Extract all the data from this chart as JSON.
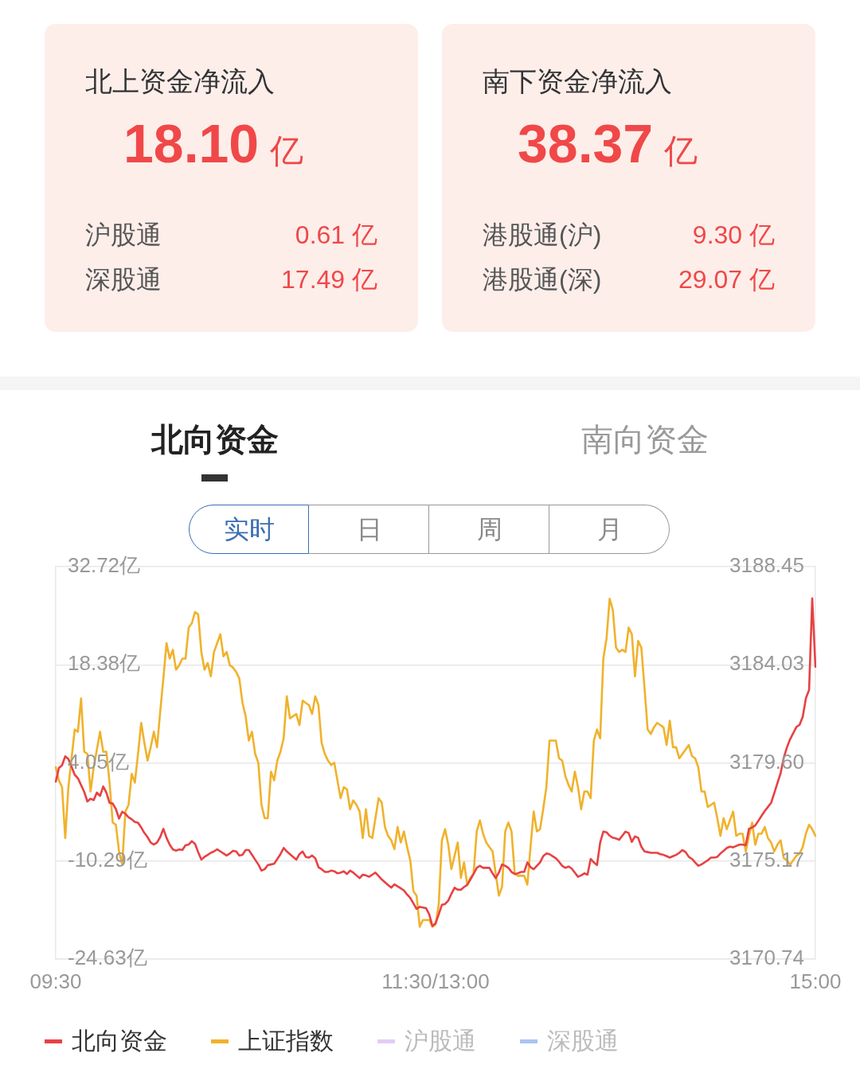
{
  "chart_data": [
    {
      "type": "other",
      "title": "北上资金净流入",
      "subtitle": "18.10 亿",
      "categories": [
        "沪股通",
        "深股通"
      ],
      "value_labels": [
        "0.61 亿",
        "17.49 亿"
      ]
    },
    {
      "type": "other",
      "title": "南下资金净流入",
      "subtitle": "38.37 亿",
      "categories": [
        "港股通(沪)",
        "港股通(深)"
      ],
      "value_labels": [
        "9.30 亿",
        "29.07 亿"
      ]
    },
    {
      "type": "other",
      "categories": [
        "北向资金",
        "南向资金"
      ]
    },
    {
      "type": "other",
      "categories": [
        "实时",
        "日",
        "周",
        "月"
      ]
    },
    {
      "type": "line",
      "categories": [
        "09:30",
        null,
        null,
        null,
        null,
        null,
        null,
        null,
        null,
        null,
        null,
        null,
        null,
        null,
        null,
        null,
        null,
        null,
        null,
        null,
        null,
        null,
        null,
        null,
        null,
        null,
        null,
        null,
        null,
        null,
        null,
        null,
        null,
        null,
        null,
        null,
        null,
        null,
        null,
        null,
        null,
        null,
        null,
        null,
        null,
        null,
        null,
        null,
        null,
        null,
        null,
        null,
        null,
        null,
        null,
        null,
        null,
        null,
        null,
        null,
        null,
        null,
        null,
        null,
        null,
        null,
        null,
        null,
        null,
        null,
        null,
        null,
        null,
        null,
        null,
        null,
        null,
        null,
        null,
        null,
        null,
        null,
        null,
        null,
        null,
        null,
        null,
        null,
        null,
        null,
        null,
        null,
        null,
        null,
        null,
        null,
        null,
        null,
        null,
        null,
        null,
        null,
        null,
        null,
        null,
        null,
        null,
        null,
        null,
        null,
        null,
        null,
        null,
        null,
        null,
        null,
        null,
        null,
        null,
        null,
        "11:30/13:00",
        null,
        null,
        null,
        null,
        null,
        null,
        null,
        null,
        null,
        null,
        null,
        null,
        null,
        null,
        null,
        null,
        null,
        null,
        null,
        null,
        null,
        null,
        null,
        null,
        null,
        null,
        null,
        null,
        null,
        null,
        null,
        null,
        null,
        null,
        null,
        null,
        null,
        null,
        null,
        null,
        null,
        null,
        null,
        null,
        null,
        null,
        null,
        null,
        null,
        null,
        null,
        null,
        null,
        null,
        null,
        null,
        null,
        null,
        null,
        null,
        null,
        null,
        null,
        null,
        null,
        null,
        null,
        null,
        null,
        null,
        null,
        null,
        null,
        null,
        null,
        null,
        null,
        null,
        null,
        null,
        null,
        null,
        null,
        null,
        null,
        null,
        null,
        null,
        null,
        null,
        null,
        null,
        null,
        null,
        null,
        null,
        null,
        null,
        null,
        null,
        null,
        null,
        null,
        null,
        null,
        null,
        null,
        null,
        null,
        null,
        null,
        null,
        null,
        null,
        null,
        null,
        null,
        null,
        null,
        "15:00"
      ],
      "series": [
        {
          "name": "北向资金",
          "color": "#e84142",
          "values": [
            1.3,
            3.3,
            3.7,
            5.0,
            4.6,
            3.5,
            2.3,
            1.8,
            0.8,
            -0.2,
            -1.6,
            -1.2,
            -1.4,
            -0.3,
            -0.8,
            0.6,
            -0.3,
            -1.8,
            -1.9,
            -2.7,
            -4.1,
            -3.1,
            -3.4,
            -3.9,
            -4.2,
            -4.6,
            -4.7,
            -5.4,
            -6.2,
            -6.8,
            -7.6,
            -7.9,
            -7.6,
            -6.8,
            -5.6,
            -6.9,
            -7.9,
            -8.6,
            -8.8,
            -8.6,
            -8.7,
            -8.0,
            -7.9,
            -7.4,
            -7.8,
            -9.0,
            -10.1,
            -9.7,
            -9.4,
            -9.1,
            -8.9,
            -8.6,
            -8.9,
            -9.2,
            -9.5,
            -9.2,
            -8.8,
            -8.9,
            -9.5,
            -9.4,
            -8.7,
            -8.7,
            -9.4,
            -10.1,
            -10.8,
            -11.7,
            -11.5,
            -10.9,
            -10.8,
            -10.7,
            -10.0,
            -9.3,
            -8.4,
            -8.9,
            -9.3,
            -9.7,
            -10.1,
            -9.3,
            -8.9,
            -9.7,
            -9.8,
            -9.5,
            -9.9,
            -11.2,
            -11.5,
            -11.9,
            -11.9,
            -11.7,
            -11.8,
            -12.1,
            -12.0,
            -11.8,
            -12.2,
            -11.7,
            -12.0,
            -12.4,
            -12.8,
            -12.3,
            -12.4,
            -12.6,
            -12.3,
            -12.0,
            -12.5,
            -13.0,
            -13.4,
            -13.8,
            -14.2,
            -13.7,
            -14.0,
            -14.3,
            -14.6,
            -15.2,
            -15.7,
            -16.5,
            -17.3,
            -17.0,
            -17.1,
            -17.2,
            -18.1,
            -19.8,
            -19.4,
            -18.1,
            -16.7,
            -16.6,
            -16.1,
            -15.1,
            -14.2,
            -14.5,
            -14.5,
            -14.1,
            -13.8,
            -13.0,
            -12.2,
            -11.3,
            -11.0,
            -11.3,
            -11.3,
            -11.3,
            -12.1,
            -12.8,
            -12.0,
            -10.8,
            -11.0,
            -11.3,
            -11.9,
            -12.2,
            -12.1,
            -11.9,
            -11.9,
            -10.5,
            -11.2,
            -11.5,
            -11.0,
            -10.5,
            -9.6,
            -9.2,
            -9.3,
            -9.6,
            -9.9,
            -10.4,
            -11.0,
            -11.3,
            -11.1,
            -11.4,
            -12.0,
            -12.6,
            -12.4,
            -12.1,
            -12.3,
            -10.0,
            -10.5,
            -10.9,
            -7.6,
            -6.0,
            -6.1,
            -6.6,
            -6.9,
            -7.0,
            -7.2,
            -6.6,
            -6.0,
            -6.2,
            -7.5,
            -6.7,
            -6.9,
            -8.2,
            -8.9,
            -9.0,
            -9.1,
            -9.1,
            -9.1,
            -9.3,
            -9.4,
            -9.6,
            -9.8,
            -9.6,
            -9.4,
            -9.1,
            -8.7,
            -9.0,
            -9.7,
            -10.0,
            -10.5,
            -11.0,
            -10.8,
            -10.5,
            -10.2,
            -9.8,
            -9.8,
            -9.7,
            -9.2,
            -8.8,
            -8.4,
            -8.2,
            -8.3,
            -8.1,
            -7.9,
            -7.9,
            -8.0,
            -5.6,
            -5.4,
            -5.1,
            -4.4,
            -3.7,
            -3.0,
            -2.4,
            -1.8,
            -0.4,
            1.1,
            2.5,
            4.8,
            6.3,
            7.5,
            8.4,
            9.3,
            9.6,
            10.8,
            13.5,
            14.7,
            28.1,
            18.1
          ]
        },
        {
          "name": "上证指数",
          "color": "#f0b22c",
          "axis": "y2",
          "values": [
            3179.4,
            3178.8,
            3178.5,
            3176.2,
            3178.5,
            3179.8,
            3181.1,
            3181.0,
            3182.5,
            3180.1,
            3180.0,
            3178.3,
            3179.4,
            3180.2,
            3181.0,
            3180.1,
            3180.1,
            3178.7,
            3176.9,
            3176.8,
            3175.6,
            3175.0,
            3177.4,
            3177.7,
            3179.1,
            3178.7,
            3180.0,
            3181.4,
            3180.5,
            3179.7,
            3180.3,
            3181.0,
            3180.3,
            3181.9,
            3183.4,
            3185.0,
            3184.3,
            3184.7,
            3183.8,
            3184.0,
            3184.3,
            3184.3,
            3185.7,
            3185.9,
            3186.4,
            3186.3,
            3184.6,
            3183.8,
            3184.1,
            3183.5,
            3184.6,
            3185.0,
            3185.4,
            3184.4,
            3184.6,
            3184.0,
            3183.9,
            3183.7,
            3183.4,
            3182.3,
            3181.7,
            3180.6,
            3181.0,
            3180.0,
            3179.6,
            3177.7,
            3177.1,
            3177.1,
            3179.2,
            3178.8,
            3179.7,
            3180.1,
            3180.7,
            3182.6,
            3181.6,
            3181.7,
            3181.8,
            3181.3,
            3182.4,
            3182.3,
            3182.2,
            3181.8,
            3182.6,
            3182.2,
            3180.5,
            3180.0,
            3179.7,
            3179.5,
            3179.6,
            3178.8,
            3178.0,
            3178.5,
            3178.4,
            3177.5,
            3177.9,
            3177.7,
            3177.4,
            3176.2,
            3177.5,
            3176.3,
            3176.2,
            3177.1,
            3178.0,
            3177.8,
            3176.7,
            3176.3,
            3176.1,
            3175.7,
            3176.7,
            3176.0,
            3176.5,
            3175.8,
            3175.2,
            3173.8,
            3173.6,
            3172.2,
            3172.5,
            3172.5,
            3172.5,
            3172.2,
            3172.3,
            3173.2,
            3176.1,
            3176.6,
            3175.9,
            3174.8,
            3175.4,
            3176.0,
            3174.4,
            3175.1,
            3174.1,
            3174.4,
            3174.6,
            3176.5,
            3177.0,
            3176.4,
            3176.0,
            3175.8,
            3175.6,
            3174.6,
            3173.6,
            3174.0,
            3176.5,
            3176.9,
            3176.5,
            3174.6,
            3174.5,
            3174.5,
            3174.5,
            3174.1,
            3175.8,
            3177.4,
            3176.5,
            3176.6,
            3177.5,
            3178.5,
            3180.6,
            3180.6,
            3180.6,
            3179.8,
            3179.7,
            3179.0,
            3178.6,
            3178.3,
            3179.2,
            3178.5,
            3177.5,
            3178.3,
            3178.3,
            3178.0,
            3180.6,
            3181.1,
            3180.7,
            3184.3,
            3185.2,
            3187.0,
            3186.5,
            3184.8,
            3184.6,
            3184.7,
            3184.6,
            3185.7,
            3185.4,
            3183.5,
            3185.1,
            3184.8,
            3183.0,
            3181.1,
            3180.9,
            3181.2,
            3181.4,
            3181.3,
            3181.2,
            3180.4,
            3181.5,
            3180.3,
            3180.3,
            3179.8,
            3180.0,
            3180.2,
            3180.4,
            3179.9,
            3179.8,
            3179.4,
            3178.3,
            3178.3,
            3177.6,
            3177.7,
            3177.8,
            3177.1,
            3176.3,
            3177.1,
            3176.6,
            3177.0,
            3177.4,
            3176.3,
            3176.4,
            3176.4,
            3175.6,
            3176.3,
            3176.9,
            3175.9,
            3176.4,
            3176.4,
            3176.7,
            3176.2,
            3176.0,
            3175.6,
            3175.9,
            3176.1,
            3175.3,
            3175.2,
            3175.0,
            3175.2,
            3175.4,
            3175.5,
            3175.8,
            3176.4,
            3176.8,
            3176.6,
            3176.3
          ]
        },
        {
          "name": "沪股通",
          "color": "#e2cdf5",
          "values": [
            null,
            null,
            null,
            null,
            null,
            null,
            null,
            null,
            null,
            null,
            null,
            null,
            null,
            null,
            null,
            null,
            null,
            null,
            null,
            null,
            null,
            null,
            null,
            null,
            null,
            null,
            null,
            null,
            null,
            null,
            null,
            null,
            null,
            null,
            null,
            null,
            null,
            null,
            null,
            null,
            null,
            null,
            null,
            null,
            null,
            null,
            null,
            null,
            null,
            null,
            null,
            null,
            null,
            null,
            null,
            null,
            null,
            null,
            null,
            null,
            null,
            null,
            null,
            null,
            null,
            null,
            null,
            null,
            null,
            null,
            null,
            null,
            null,
            null,
            null,
            null,
            null,
            null,
            null,
            null,
            null,
            null,
            null,
            null,
            null,
            null,
            null,
            null,
            null,
            null,
            null,
            null,
            null,
            null,
            null,
            null,
            null,
            null,
            null,
            null,
            null,
            null,
            null,
            null,
            null,
            null,
            null,
            null,
            null,
            null,
            null,
            null,
            null,
            null,
            null,
            null,
            null,
            null,
            null,
            null,
            null,
            null,
            null,
            null,
            null,
            null,
            null,
            null,
            null,
            null,
            null,
            null,
            null,
            null,
            null,
            null,
            null,
            null,
            null,
            null,
            null,
            null,
            null,
            null,
            null,
            null,
            null,
            null,
            null,
            null,
            null,
            null,
            null,
            null,
            null,
            null,
            null,
            null,
            null,
            null,
            null,
            null,
            null,
            null,
            null,
            null,
            null,
            null,
            null,
            null,
            null,
            null,
            null,
            null,
            null,
            null,
            null,
            null,
            null,
            null,
            null,
            null,
            null,
            null,
            null,
            null,
            null,
            null,
            null,
            null,
            null,
            null,
            null,
            null,
            null,
            null,
            null,
            null,
            null,
            null,
            null,
            null,
            null,
            null,
            null,
            null,
            null,
            null,
            null,
            null,
            null,
            null,
            null,
            null,
            null,
            null,
            null,
            null,
            null,
            null,
            null,
            null,
            null,
            null,
            null,
            null,
            null,
            null,
            null,
            null,
            null,
            null,
            null,
            null,
            null,
            null,
            null,
            null,
            null,
            null,
            null
          ]
        },
        {
          "name": "深股通",
          "color": "#aac4f2",
          "values": [
            null,
            null,
            null,
            null,
            null,
            null,
            null,
            null,
            null,
            null,
            null,
            null,
            null,
            null,
            null,
            null,
            null,
            null,
            null,
            null,
            null,
            null,
            null,
            null,
            null,
            null,
            null,
            null,
            null,
            null,
            null,
            null,
            null,
            null,
            null,
            null,
            null,
            null,
            null,
            null,
            null,
            null,
            null,
            null,
            null,
            null,
            null,
            null,
            null,
            null,
            null,
            null,
            null,
            null,
            null,
            null,
            null,
            null,
            null,
            null,
            null,
            null,
            null,
            null,
            null,
            null,
            null,
            null,
            null,
            null,
            null,
            null,
            null,
            null,
            null,
            null,
            null,
            null,
            null,
            null,
            null,
            null,
            null,
            null,
            null,
            null,
            null,
            null,
            null,
            null,
            null,
            null,
            null,
            null,
            null,
            null,
            null,
            null,
            null,
            null,
            null,
            null,
            null,
            null,
            null,
            null,
            null,
            null,
            null,
            null,
            null,
            null,
            null,
            null,
            null,
            null,
            null,
            null,
            null,
            null,
            null,
            null,
            null,
            null,
            null,
            null,
            null,
            null,
            null,
            null,
            null,
            null,
            null,
            null,
            null,
            null,
            null,
            null,
            null,
            null,
            null,
            null,
            null,
            null,
            null,
            null,
            null,
            null,
            null,
            null,
            null,
            null,
            null,
            null,
            null,
            null,
            null,
            null,
            null,
            null,
            null,
            null,
            null,
            null,
            null,
            null,
            null,
            null,
            null,
            null,
            null,
            null,
            null,
            null,
            null,
            null,
            null,
            null,
            null,
            null,
            null,
            null,
            null,
            null,
            null,
            null,
            null,
            null,
            null,
            null,
            null,
            null,
            null,
            null,
            null,
            null,
            null,
            null,
            null,
            null,
            null,
            null,
            null,
            null,
            null,
            null,
            null,
            null,
            null,
            null,
            null,
            null,
            null,
            null,
            null,
            null,
            null,
            null,
            null,
            null,
            null,
            null,
            null,
            null,
            null,
            null,
            null,
            null,
            null,
            null,
            null,
            null,
            null,
            null,
            null,
            null,
            null,
            null,
            null,
            null,
            null
          ]
        }
      ],
      "ylim": [
        -24.63,
        32.72
      ],
      "yticks": [
        {
          "value": -24.63,
          "label": "-24.63亿"
        },
        {
          "value": -10.29,
          "label": "-10.29亿"
        },
        {
          "value": 4.05,
          "label": "4.05亿"
        },
        {
          "value": 18.38,
          "label": "18.38亿"
        },
        {
          "value": 32.72,
          "label": "32.72亿"
        }
      ],
      "y2lim": [
        3170.74,
        3188.45
      ],
      "y2ticks": [
        3170.74,
        3175.17,
        {
          "value": 3179.6,
          "label": "3179.60"
        },
        3184.03,
        3188.45
      ],
      "grid": "y",
      "legend": "bottom"
    }
  ]
}
